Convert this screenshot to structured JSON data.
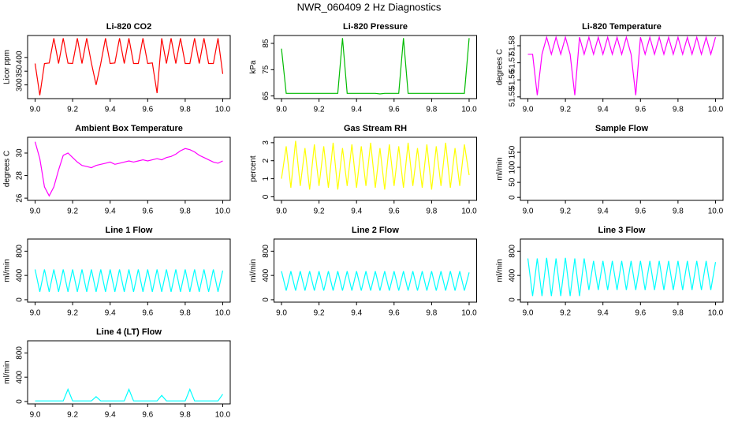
{
  "title": "NWR_060409  2 Hz Diagnostics",
  "chart_data": [
    {
      "type": "line",
      "title": "Li-820 CO2",
      "y_label": "Licor ppm",
      "color": "#ff0000",
      "x": [
        9.0,
        9.025,
        9.05,
        9.075,
        9.1,
        9.125,
        9.15,
        9.175,
        9.2,
        9.225,
        9.25,
        9.275,
        9.3,
        9.325,
        9.35,
        9.375,
        9.4,
        9.425,
        9.45,
        9.475,
        9.5,
        9.525,
        9.55,
        9.575,
        9.6,
        9.625,
        9.65,
        9.675,
        9.7,
        9.725,
        9.75,
        9.775,
        9.8,
        9.825,
        9.85,
        9.875,
        9.9,
        9.925,
        9.95,
        9.975,
        10.0
      ],
      "values": [
        378,
        262,
        378,
        380,
        470,
        378,
        470,
        379,
        378,
        470,
        378,
        470,
        380,
        300,
        378,
        470,
        378,
        380,
        470,
        378,
        470,
        378,
        378,
        470,
        378,
        380,
        270,
        470,
        378,
        470,
        378,
        470,
        378,
        378,
        470,
        378,
        470,
        378,
        378,
        470,
        340
      ],
      "xlim": [
        8.96,
        10.04
      ],
      "ylim": [
        250,
        480
      ],
      "xticks": [
        {
          "value": 9,
          "label": "9.0"
        },
        9.2,
        9.4,
        9.6,
        9.8,
        {
          "value": 10,
          "label": "10.0"
        }
      ],
      "yticks": [
        300,
        350,
        400
      ]
    },
    {
      "type": "line",
      "title": "Li-820 Pressure",
      "y_label": "kPa",
      "color": "#00bb00",
      "x": [
        9.0,
        9.025,
        9.05,
        9.075,
        9.1,
        9.125,
        9.15,
        9.175,
        9.2,
        9.225,
        9.25,
        9.275,
        9.3,
        9.325,
        9.35,
        9.375,
        9.4,
        9.425,
        9.45,
        9.475,
        9.5,
        9.525,
        9.55,
        9.575,
        9.6,
        9.625,
        9.65,
        9.675,
        9.7,
        9.725,
        9.75,
        9.775,
        9.8,
        9.825,
        9.85,
        9.875,
        9.9,
        9.925,
        9.95,
        9.975,
        10.0
      ],
      "values": [
        83,
        66,
        66,
        66,
        66,
        66,
        66,
        66,
        66,
        66,
        66,
        66,
        66,
        87,
        66,
        66,
        66,
        66,
        66,
        66,
        66,
        65.8,
        66,
        66,
        66,
        66,
        87,
        66,
        66,
        66,
        66,
        66,
        66,
        66,
        66,
        66,
        66,
        66,
        66,
        66,
        87
      ],
      "xlim": [
        8.96,
        10.04
      ],
      "ylim": [
        64,
        88
      ],
      "xticks": [
        {
          "value": 9,
          "label": "9.0"
        },
        9.2,
        9.4,
        9.6,
        9.8,
        {
          "value": 10,
          "label": "10.0"
        }
      ],
      "yticks": [
        65,
        75,
        85
      ]
    },
    {
      "type": "line",
      "title": "Li-820 Temperature",
      "y_label": "degrees C",
      "color": "#ff00ff",
      "x": [
        9.0,
        9.025,
        9.05,
        9.075,
        9.1,
        9.125,
        9.15,
        9.175,
        9.2,
        9.225,
        9.25,
        9.275,
        9.3,
        9.325,
        9.35,
        9.375,
        9.4,
        9.425,
        9.45,
        9.475,
        9.5,
        9.525,
        9.55,
        9.575,
        9.6,
        9.625,
        9.65,
        9.675,
        9.7,
        9.725,
        9.75,
        9.775,
        9.8,
        9.825,
        9.85,
        9.875,
        9.9,
        9.925,
        9.95,
        9.975,
        10.0
      ],
      "values": [
        51.575,
        51.575,
        51.551,
        51.575,
        51.585,
        51.575,
        51.585,
        51.575,
        51.585,
        51.575,
        51.551,
        51.585,
        51.575,
        51.585,
        51.575,
        51.585,
        51.575,
        51.585,
        51.575,
        51.585,
        51.575,
        51.585,
        51.575,
        51.551,
        51.585,
        51.575,
        51.585,
        51.575,
        51.585,
        51.575,
        51.585,
        51.575,
        51.585,
        51.575,
        51.585,
        51.575,
        51.585,
        51.575,
        51.585,
        51.575,
        51.585
      ],
      "xlim": [
        8.96,
        10.04
      ],
      "ylim": [
        51.549,
        51.586
      ],
      "xticks": [
        {
          "value": 9,
          "label": "9.0"
        },
        9.2,
        9.4,
        9.6,
        9.8,
        {
          "value": 10,
          "label": "10.0"
        }
      ],
      "yticks": [
        51.55,
        51.56,
        51.57,
        51.58
      ]
    },
    {
      "type": "line",
      "title": "Ambient Box Temperature",
      "y_label": "degrees C",
      "color": "#ff00ff",
      "x": [
        9.0,
        9.025,
        9.05,
        9.075,
        9.1,
        9.125,
        9.15,
        9.175,
        9.2,
        9.225,
        9.25,
        9.275,
        9.3,
        9.325,
        9.35,
        9.375,
        9.4,
        9.425,
        9.45,
        9.475,
        9.5,
        9.525,
        9.55,
        9.575,
        9.6,
        9.625,
        9.65,
        9.675,
        9.7,
        9.725,
        9.75,
        9.775,
        9.8,
        9.825,
        9.85,
        9.875,
        9.9,
        9.925,
        9.95,
        9.975,
        10.0
      ],
      "values": [
        31,
        29.5,
        27,
        26.2,
        27,
        28.5,
        29.8,
        30,
        29.6,
        29.2,
        28.9,
        28.8,
        28.7,
        28.9,
        29,
        29.1,
        29.2,
        29,
        29.1,
        29.2,
        29.3,
        29.2,
        29.3,
        29.4,
        29.3,
        29.4,
        29.5,
        29.4,
        29.6,
        29.7,
        29.9,
        30.2,
        30.4,
        30.3,
        30.1,
        29.8,
        29.6,
        29.4,
        29.2,
        29.1,
        29.3
      ],
      "xlim": [
        8.96,
        10.04
      ],
      "ylim": [
        25.8,
        31.4
      ],
      "xticks": [
        {
          "value": 9,
          "label": "9.0"
        },
        9.2,
        9.4,
        9.6,
        9.8,
        {
          "value": 10,
          "label": "10.0"
        }
      ],
      "yticks": [
        26,
        28,
        30
      ]
    },
    {
      "type": "line",
      "title": "Gas Stream RH",
      "y_label": "percent",
      "color": "#ffff00",
      "x": [
        9.0,
        9.025,
        9.05,
        9.075,
        9.1,
        9.125,
        9.15,
        9.175,
        9.2,
        9.225,
        9.25,
        9.275,
        9.3,
        9.325,
        9.35,
        9.375,
        9.4,
        9.425,
        9.45,
        9.475,
        9.5,
        9.525,
        9.55,
        9.575,
        9.6,
        9.625,
        9.65,
        9.675,
        9.7,
        9.725,
        9.75,
        9.775,
        9.8,
        9.825,
        9.85,
        9.875,
        9.9,
        9.925,
        9.95,
        9.975,
        10.0
      ],
      "values": [
        1,
        2.8,
        0.5,
        3.1,
        0.6,
        2.7,
        0.4,
        2.9,
        0.6,
        2.8,
        0.5,
        3,
        0.4,
        2.7,
        0.6,
        2.9,
        0.5,
        2.8,
        0.6,
        3,
        0.5,
        2.7,
        0.4,
        2.9,
        0.6,
        2.8,
        0.5,
        3,
        0.6,
        2.7,
        0.5,
        2.9,
        0.4,
        2.8,
        0.6,
        3,
        0.5,
        2.7,
        0.6,
        2.9,
        1.2
      ],
      "xlim": [
        8.96,
        10.04
      ],
      "ylim": [
        -0.2,
        3.3
      ],
      "xticks": [
        {
          "value": 9,
          "label": "9.0"
        },
        9.2,
        9.4,
        9.6,
        9.8,
        {
          "value": 10,
          "label": "10.0"
        }
      ],
      "yticks": [
        0,
        1,
        2,
        3
      ]
    },
    {
      "type": "line",
      "title": "Sample Flow",
      "y_label": "ml/min",
      "color": "#00ffff",
      "x": [],
      "values": [],
      "xlim": [
        8.96,
        10.04
      ],
      "ylim": [
        -10,
        200
      ],
      "xticks": [
        {
          "value": 9,
          "label": "9.0"
        },
        9.2,
        9.4,
        9.6,
        9.8,
        {
          "value": 10,
          "label": "10.0"
        }
      ],
      "yticks": [
        0,
        50,
        100,
        150
      ]
    },
    {
      "type": "line",
      "title": "Line 1 Flow",
      "y_label": "ml/min",
      "color": "#00ffff",
      "x": [
        9.0,
        9.025,
        9.05,
        9.075,
        9.1,
        9.125,
        9.15,
        9.175,
        9.2,
        9.225,
        9.25,
        9.275,
        9.3,
        9.325,
        9.35,
        9.375,
        9.4,
        9.425,
        9.45,
        9.475,
        9.5,
        9.525,
        9.55,
        9.575,
        9.6,
        9.625,
        9.65,
        9.675,
        9.7,
        9.725,
        9.75,
        9.775,
        9.8,
        9.825,
        9.85,
        9.875,
        9.9,
        9.925,
        9.95,
        9.975,
        10.0
      ],
      "values": [
        500,
        130,
        500,
        130,
        500,
        130,
        500,
        130,
        500,
        130,
        500,
        130,
        500,
        130,
        500,
        130,
        500,
        130,
        500,
        130,
        500,
        130,
        500,
        130,
        500,
        130,
        500,
        130,
        500,
        130,
        500,
        130,
        500,
        130,
        500,
        130,
        500,
        130,
        500,
        130,
        480
      ],
      "xlim": [
        8.96,
        10.04
      ],
      "ylim": [
        -40,
        1000
      ],
      "xticks": [
        {
          "value": 9,
          "label": "9.0"
        },
        9.2,
        9.4,
        9.6,
        9.8,
        {
          "value": 10,
          "label": "10.0"
        }
      ],
      "yticks": [
        0,
        400,
        800
      ]
    },
    {
      "type": "line",
      "title": "Line 2 Flow",
      "y_label": "ml/min",
      "color": "#00ffff",
      "x": [
        9.0,
        9.025,
        9.05,
        9.075,
        9.1,
        9.125,
        9.15,
        9.175,
        9.2,
        9.225,
        9.25,
        9.275,
        9.3,
        9.325,
        9.35,
        9.375,
        9.4,
        9.425,
        9.45,
        9.475,
        9.5,
        9.525,
        9.55,
        9.575,
        9.6,
        9.625,
        9.65,
        9.675,
        9.7,
        9.725,
        9.75,
        9.775,
        9.8,
        9.825,
        9.85,
        9.875,
        9.9,
        9.925,
        9.95,
        9.975,
        10.0
      ],
      "values": [
        470,
        150,
        470,
        150,
        470,
        150,
        470,
        150,
        470,
        150,
        470,
        150,
        470,
        150,
        470,
        150,
        470,
        150,
        470,
        150,
        470,
        150,
        470,
        150,
        470,
        150,
        470,
        150,
        470,
        150,
        470,
        150,
        470,
        150,
        470,
        150,
        470,
        150,
        470,
        150,
        450
      ],
      "xlim": [
        8.96,
        10.04
      ],
      "ylim": [
        -40,
        1000
      ],
      "xticks": [
        {
          "value": 9,
          "label": "9.0"
        },
        9.2,
        9.4,
        9.6,
        9.8,
        {
          "value": 10,
          "label": "10.0"
        }
      ],
      "yticks": [
        0,
        400,
        800
      ]
    },
    {
      "type": "line",
      "title": "Line 3 Flow",
      "y_label": "ml/min",
      "color": "#00ffff",
      "x": [
        9.0,
        9.025,
        9.05,
        9.075,
        9.1,
        9.125,
        9.15,
        9.175,
        9.2,
        9.225,
        9.25,
        9.275,
        9.3,
        9.325,
        9.35,
        9.375,
        9.4,
        9.425,
        9.45,
        9.475,
        9.5,
        9.525,
        9.55,
        9.575,
        9.6,
        9.625,
        9.65,
        9.675,
        9.7,
        9.725,
        9.75,
        9.775,
        9.8,
        9.825,
        9.85,
        9.875,
        9.9,
        9.925,
        9.95,
        9.975,
        10.0
      ],
      "values": [
        680,
        60,
        680,
        60,
        690,
        60,
        680,
        60,
        690,
        60,
        680,
        60,
        680,
        160,
        640,
        160,
        640,
        160,
        640,
        160,
        640,
        160,
        640,
        160,
        640,
        160,
        640,
        160,
        640,
        160,
        640,
        160,
        640,
        160,
        640,
        160,
        640,
        160,
        640,
        160,
        620
      ],
      "xlim": [
        8.96,
        10.04
      ],
      "ylim": [
        -40,
        1000
      ],
      "xticks": [
        {
          "value": 9,
          "label": "9.0"
        },
        9.2,
        9.4,
        9.6,
        9.8,
        {
          "value": 10,
          "label": "10.0"
        }
      ],
      "yticks": [
        0,
        400,
        800
      ]
    },
    {
      "type": "line",
      "title": "Line 4 (LT) Flow",
      "y_label": "ml/min",
      "color": "#00ffff",
      "x": [
        9.0,
        9.025,
        9.05,
        9.075,
        9.1,
        9.125,
        9.15,
        9.175,
        9.2,
        9.225,
        9.25,
        9.275,
        9.3,
        9.325,
        9.35,
        9.375,
        9.4,
        9.425,
        9.45,
        9.475,
        9.5,
        9.525,
        9.55,
        9.575,
        9.6,
        9.625,
        9.65,
        9.675,
        9.7,
        9.725,
        9.75,
        9.775,
        9.8,
        9.825,
        9.85,
        9.875,
        9.9,
        9.925,
        9.95,
        9.975,
        10.0
      ],
      "values": [
        10,
        10,
        10,
        10,
        10,
        10,
        10,
        200,
        10,
        10,
        10,
        10,
        10,
        80,
        10,
        10,
        10,
        10,
        10,
        10,
        200,
        10,
        10,
        10,
        10,
        10,
        10,
        100,
        10,
        10,
        10,
        10,
        10,
        200,
        10,
        10,
        10,
        10,
        10,
        10,
        120
      ],
      "xlim": [
        8.96,
        10.04
      ],
      "ylim": [
        -40,
        1000
      ],
      "xticks": [
        {
          "value": 9,
          "label": "9.0"
        },
        9.2,
        9.4,
        9.6,
        9.8,
        {
          "value": 10,
          "label": "10.0"
        }
      ],
      "yticks": [
        0,
        400,
        800
      ]
    }
  ]
}
